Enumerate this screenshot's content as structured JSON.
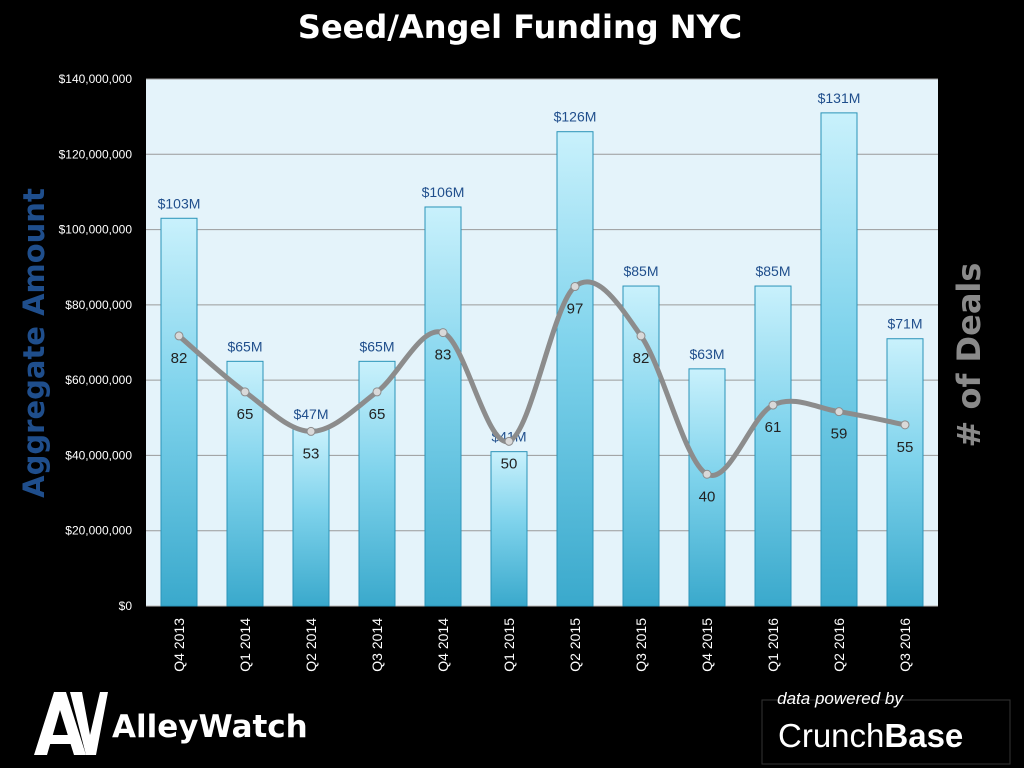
{
  "chart_data": {
    "type": "bar",
    "title": "Seed/Angel Funding NYC",
    "ylabel": "Aggregate  Amount",
    "y2label": "# of Deals",
    "ylim": [
      0,
      140000000
    ],
    "y_ticks": [
      "$0",
      "$20,000,000",
      "$40,000,000",
      "$60,000,000",
      "$80,000,000",
      "$100,000,000",
      "$120,000,000",
      "$140,000,000"
    ],
    "y_tick_values": [
      0,
      20000000,
      40000000,
      60000000,
      80000000,
      100000000,
      120000000,
      140000000
    ],
    "y2lim": [
      0,
      160
    ],
    "grid": true,
    "categories": [
      "Q4 2013",
      "Q1 2014",
      "Q2 2014",
      "Q3 2014",
      "Q4 2014",
      "Q1 2015",
      "Q2 2015",
      "Q3 2015",
      "Q4 2015",
      "Q1 2016",
      "Q2 2016",
      "Q3 2016"
    ],
    "series": [
      {
        "type": "bar",
        "values": [
          103000000,
          65000000,
          47000000,
          65000000,
          106000000,
          41000000,
          126000000,
          85000000,
          63000000,
          85000000,
          131000000,
          71000000
        ],
        "labels": [
          "$103M",
          "$65M",
          "$47M",
          "$65M",
          "$106M",
          "$41M",
          "$126M",
          "$85M",
          "$63M",
          "$85M",
          "$131M",
          "$71M"
        ]
      },
      {
        "type": "line",
        "axis": "secondary",
        "values": [
          82,
          65,
          53,
          65,
          83,
          50,
          97,
          82,
          40,
          61,
          59,
          55
        ],
        "labels": [
          "82",
          "65",
          "53",
          "65",
          "83",
          "50",
          "97",
          "82",
          "40",
          "61",
          "59",
          "55"
        ]
      }
    ],
    "colors": {
      "bar": "#4fc1e0",
      "bar_light": "#c9f1fc",
      "line": "#8c8c8c",
      "plot_bg": "#e4f3fa",
      "ylabel": "#1f4e8c",
      "y2label": "#8a8a8a"
    }
  },
  "logo": {
    "brand": "AlleyWatch"
  },
  "credit": {
    "text": "data powered by",
    "brand_a": "Crunch",
    "brand_b": "Base"
  }
}
